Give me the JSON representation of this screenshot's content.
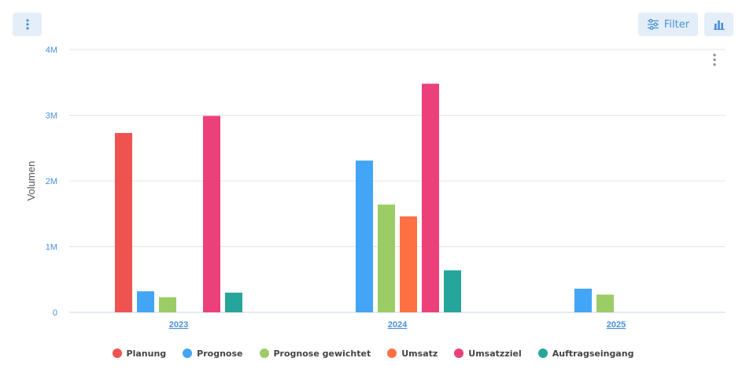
{
  "toolbar": {
    "filter_label": "Filter"
  },
  "colors": {
    "accent": "#4a90d9",
    "button_bg": "#e4eef9"
  },
  "legend_items": [
    {
      "label": "Planung",
      "color": "#ef5350"
    },
    {
      "label": "Prognose",
      "color": "#42a5f5"
    },
    {
      "label": "Prognose gewichtet",
      "color": "#9ccc65"
    },
    {
      "label": "Umsatz",
      "color": "#ff7043"
    },
    {
      "label": "Umsatzziel",
      "color": "#ec407a"
    },
    {
      "label": "Auftragseingang",
      "color": "#26a69a"
    }
  ],
  "chart_data": {
    "type": "bar",
    "categories": [
      "2023",
      "2024",
      "2025"
    ],
    "ylabel": "Volumen",
    "xlabel": "",
    "ylim": [
      0,
      4000000
    ],
    "yticks": [
      0,
      1000000,
      2000000,
      3000000,
      4000000
    ],
    "ytick_labels": [
      "0",
      "1M",
      "2M",
      "3M",
      "4M"
    ],
    "grid": true,
    "legend_position": "bottom",
    "series": [
      {
        "name": "Planung",
        "color": "#ef5350",
        "values": [
          2730000,
          null,
          null
        ]
      },
      {
        "name": "Prognose",
        "color": "#42a5f5",
        "values": [
          320000,
          2310000,
          360000
        ]
      },
      {
        "name": "Prognose gewichtet",
        "color": "#9ccc65",
        "values": [
          230000,
          1640000,
          270000
        ]
      },
      {
        "name": "Umsatz",
        "color": "#ff7043",
        "values": [
          null,
          1460000,
          null
        ]
      },
      {
        "name": "Umsatzziel",
        "color": "#ec407a",
        "values": [
          2990000,
          3480000,
          null
        ]
      },
      {
        "name": "Auftragseingang",
        "color": "#26a69a",
        "values": [
          300000,
          640000,
          null
        ]
      }
    ]
  }
}
